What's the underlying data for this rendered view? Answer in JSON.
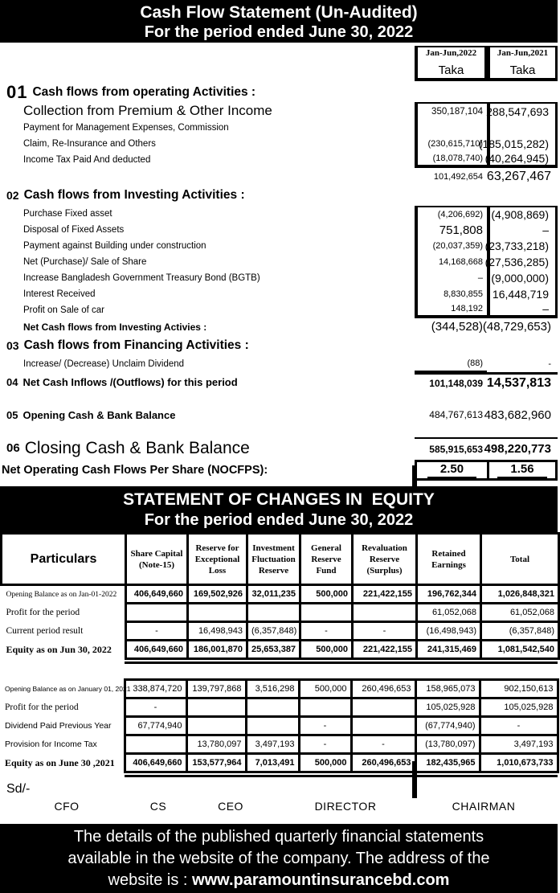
{
  "header": {
    "title_line1": "Cash Flow Statement (Un-Audited)",
    "title_line2": "For the period ended June 30, 2022"
  },
  "columns": {
    "period_2022": "Jan-Jun,2022",
    "period_2021": "Jan-Jun,2021",
    "unit_2022": "Taka",
    "unit_2021": "Taka"
  },
  "cashflow": {
    "rows": [
      {
        "type": "s1",
        "num": "01",
        "label": "Cash flows from operating Activities :"
      },
      {
        "type": "itemLg",
        "label": "Collection from Premium & Other Income",
        "v1": "350,187,104",
        "v2": "288,547,693",
        "box": true,
        "edge": "top"
      },
      {
        "type": "item",
        "label": "Payment for Management Expenses, Commission",
        "box": true
      },
      {
        "type": "item",
        "label": "Claim, Re-Insurance and Others",
        "v1": "(230,615,710)",
        "v2": "(185,015,282)",
        "box": true
      },
      {
        "type": "item",
        "label": "Income Tax Paid And deducted",
        "v1": "(18,078,740)",
        "v2": "(40,264,945)",
        "box": true,
        "edge": "bottom"
      },
      {
        "type": "subtotal",
        "v1": "101,492,654",
        "v2": "63,267,467"
      },
      {
        "type": "s2",
        "num": "02",
        "label": "Cash flows from Investing Activities :"
      },
      {
        "type": "item",
        "label": "Purchase Fixed asset",
        "v1": "(4,206,692)",
        "v2": "(4,908,869)",
        "box": true,
        "edge": "top"
      },
      {
        "type": "item",
        "label": "Disposal of Fixed Assets",
        "v1": "751,808",
        "v2": "–",
        "v1big": true,
        "box": true
      },
      {
        "type": "item",
        "label": "Payment against Building under construction",
        "v1": "(20,037,359)",
        "v2": "(23,733,218)",
        "box": true
      },
      {
        "type": "item",
        "label": "Net (Purchase)/ Sale of Share",
        "v1": "14,168,668",
        "v2": "(27,536,285)",
        "box": true
      },
      {
        "type": "item",
        "label": "Increase Bangladesh Government Treasury Bond (BGTB)",
        "v1": "–",
        "v2": "(9,000,000)",
        "box": true
      },
      {
        "type": "item",
        "label": "Interest Received",
        "v1": "8,830,855",
        "v2": "16,448,719",
        "box": true
      },
      {
        "type": "item",
        "label": "Profit on Sale of car",
        "v1": "148,192",
        "v2": "–",
        "box": true,
        "edge": "bottom"
      },
      {
        "type": "netInv",
        "label": "Net Cash flows from Investing Activies :",
        "v1": "(344,528)",
        "v2": "(48,729,653)"
      },
      {
        "type": "s2",
        "num": "03",
        "label": "Cash flows from Financing Activities :"
      },
      {
        "type": "item unclaim",
        "label": "Increase/ (Decrease) Unclaim Dividend",
        "v1": "(88)",
        "v2": "-",
        "rule": "c1-underline"
      },
      {
        "type": "row04",
        "num": "04",
        "label": "Net Cash Inflows /(Outflows) for this period",
        "v1": "101,148,039",
        "v2": "14,537,813",
        "rule": "thick-top"
      },
      {
        "type": "row05",
        "num": "05",
        "label": "Opening Cash & Bank Balance",
        "v1": "484,767,613",
        "v2": "483,682,960"
      },
      {
        "type": "row06",
        "num": "06",
        "label": "Closing Cash & Bank Balance",
        "v1": "585,915,653",
        "v2": "498,220,773",
        "rule": "thin-top"
      }
    ],
    "nocfps": {
      "label": "Net Operating Cash Flows Per Share (NOCFPS):",
      "v2022": "2.50",
      "v2021": "1.56"
    }
  },
  "equity": {
    "title_line1": "STATEMENT OF CHANGES IN  EQUITY",
    "title_line2": "For the period ended June 30, 2022",
    "headers": [
      "Particulars",
      "Share Capital\n(Note-15)",
      "Reserve for\nExceptional\nLoss",
      "Investment\nFluctuation\nReserve",
      "General\nReserve\nFund",
      "Revaluation\nReserve\n(Surplus)",
      "Retained\nEarnings",
      "Total"
    ],
    "block1": [
      {
        "label": "Opening Balance as on Jan-01-2022",
        "label_style": "sm",
        "values_bold": true,
        "cells": [
          "406,649,660",
          "169,502,926",
          "32,011,235",
          "500,000",
          "221,422,155",
          "196,762,344",
          "1,026,848,321"
        ]
      },
      {
        "label": "Profit for the period",
        "label_style": "def",
        "values_bold": false,
        "cells": [
          "",
          "",
          "",
          "",
          "",
          "61,052,068",
          "61,052,068"
        ]
      },
      {
        "label": "Current period result",
        "label_style": "def",
        "values_bold": false,
        "cells": [
          "-",
          "16,498,943",
          "(6,357,848)",
          "-",
          "-",
          "(16,498,943)",
          "(6,357,848)"
        ]
      },
      {
        "label": "Equity as on Jun 30, 2022",
        "label_style": "bold",
        "values_bold": true,
        "cells": [
          "406,649,660",
          "186,001,870",
          "25,653,387",
          "500,000",
          "221,422,155",
          "241,315,469",
          "1,081,542,540"
        ]
      }
    ],
    "block2": [
      {
        "label": "Opening Balance as on January 01, 2021",
        "label_style": "xs",
        "values_bold": false,
        "cells": [
          "338,874,720",
          "139,797,868",
          "3,516,298",
          "500,000",
          "260,496,653",
          "158,965,073",
          "902,150,613"
        ]
      },
      {
        "label": "Profit for the period",
        "label_style": "def",
        "values_bold": false,
        "cells": [
          "-",
          "",
          "",
          "",
          "",
          "105,025,928",
          "105,025,928"
        ]
      },
      {
        "label": "Dividend Paid Previous Year",
        "label_style": "sans",
        "values_bold": false,
        "cells": [
          "67,774,940",
          "",
          "",
          "-",
          "",
          "(67,774,940)",
          "-"
        ]
      },
      {
        "label": "Provision for Income Tax",
        "label_style": "sans",
        "values_bold": false,
        "cells": [
          "",
          "13,780,097",
          "3,497,193",
          "-",
          "-",
          "(13,780,097)",
          "3,497,193"
        ]
      },
      {
        "label": "Equity as on June 30 ,2021",
        "label_style": "bold",
        "values_bold": true,
        "cells": [
          "406,649,660",
          "153,577,964",
          "7,013,491",
          "500,000",
          "260,496,653",
          "182,435,965",
          "1,010,673,733"
        ]
      }
    ]
  },
  "signoff": {
    "sd": "Sd/-",
    "signatures": [
      "CFO",
      "CS",
      "CEO",
      "DIRECTOR",
      "CHAIRMAN"
    ]
  },
  "footer": {
    "line1": "The details of the published quarterly financial statements",
    "line2": "available in the website of the company. The address of the",
    "line3_prefix": "website is : ",
    "website": "www.paramountinsurancebd.com"
  },
  "colors": {
    "banner_bg": "#000000",
    "banner_text": "#ffffff",
    "text": "#000000",
    "page_bg": "#ffffff"
  }
}
